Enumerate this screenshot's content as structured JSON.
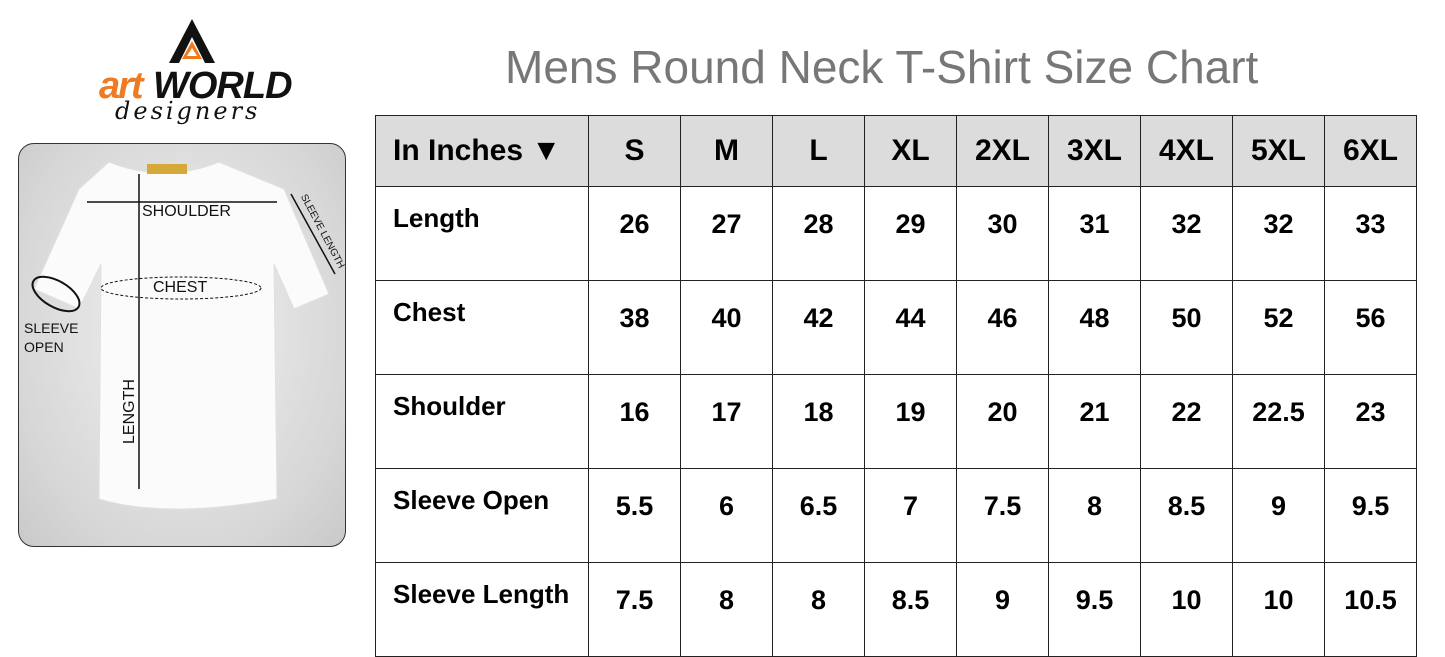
{
  "logo": {
    "text_art": "art",
    "text_world": "WORLD",
    "text_designers": "designers",
    "accent": "#f07a22"
  },
  "title": "Mens Round Neck T-Shirt Size Chart",
  "diagram": {
    "labels": {
      "shoulder": "SHOULDER",
      "sleeve_length": "SLEEVE LENGTH",
      "chest": "CHEST",
      "sleeve_open_1": "SLEEVE",
      "sleeve_open_2": "OPEN",
      "length": "LENGTH"
    }
  },
  "chart_data": {
    "type": "table",
    "unit_header": "In Inches ▼",
    "columns": [
      "S",
      "M",
      "L",
      "XL",
      "2XL",
      "3XL",
      "4XL",
      "5XL",
      "6XL"
    ],
    "rows": [
      {
        "label": "Length",
        "values": [
          "26",
          "27",
          "28",
          "29",
          "30",
          "31",
          "32",
          "32",
          "33"
        ]
      },
      {
        "label": "Chest",
        "values": [
          "38",
          "40",
          "42",
          "44",
          "46",
          "48",
          "50",
          "52",
          "56"
        ]
      },
      {
        "label": "Shoulder",
        "values": [
          "16",
          "17",
          "18",
          "19",
          "20",
          "21",
          "22",
          "22.5",
          "23"
        ]
      },
      {
        "label": "Sleeve Open",
        "values": [
          "5.5",
          "6",
          "6.5",
          "7",
          "7.5",
          "8",
          "8.5",
          "9",
          "9.5"
        ]
      },
      {
        "label": "Sleeve Length",
        "values": [
          "7.5",
          "8",
          "8",
          "8.5",
          "9",
          "9.5",
          "10",
          "10",
          "10.5"
        ]
      }
    ]
  }
}
